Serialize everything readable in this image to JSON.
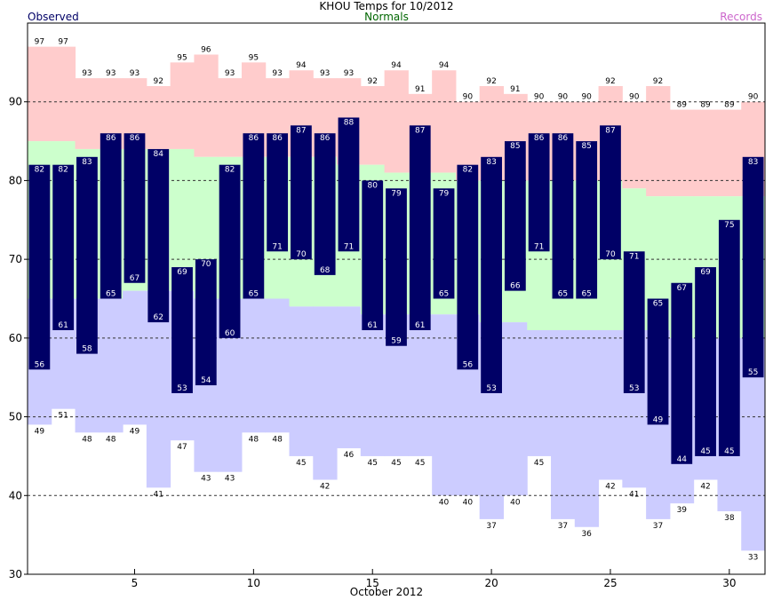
{
  "chart_data": {
    "type": "bar",
    "title": "KHOU Temps for 10/2012",
    "xlabel": "October 2012",
    "ylabel": "",
    "legend": {
      "observed": "Observed",
      "normals": "Normals",
      "records": "Records",
      "placement": "top"
    },
    "grid": true,
    "xlim": [
      1,
      31
    ],
    "ylim": [
      30,
      100
    ],
    "y_ticks": [
      30,
      40,
      50,
      60,
      70,
      80,
      90
    ],
    "x_ticks": [
      5,
      10,
      15,
      20,
      25,
      30
    ],
    "days": [
      1,
      2,
      3,
      4,
      5,
      6,
      7,
      8,
      9,
      10,
      11,
      12,
      13,
      14,
      15,
      16,
      17,
      18,
      19,
      20,
      21,
      22,
      23,
      24,
      25,
      26,
      27,
      28,
      29,
      30,
      31
    ],
    "series": [
      {
        "name": "Observed",
        "key": "obs_high",
        "values": [
          82,
          82,
          83,
          86,
          86,
          84,
          69,
          70,
          82,
          86,
          86,
          87,
          86,
          88,
          80,
          79,
          87,
          79,
          82,
          83,
          85,
          86,
          86,
          85,
          87,
          71,
          65,
          67,
          69,
          75,
          83
        ]
      },
      {
        "name": "Observed",
        "key": "obs_low",
        "values": [
          56,
          61,
          58,
          65,
          67,
          62,
          53,
          54,
          60,
          65,
          71,
          70,
          68,
          71,
          61,
          59,
          61,
          65,
          56,
          53,
          66,
          71,
          65,
          65,
          70,
          53,
          49,
          44,
          45,
          45,
          55
        ]
      },
      {
        "name": "Normals",
        "key": "norm_high",
        "values": [
          85,
          85,
          84,
          84,
          84,
          84,
          84,
          83,
          83,
          83,
          83,
          83,
          83,
          82,
          82,
          81,
          81,
          81,
          80,
          80,
          80,
          80,
          80,
          80,
          80,
          79,
          78,
          78,
          78,
          78,
          78
        ]
      },
      {
        "name": "Normals",
        "key": "norm_low",
        "values": [
          65,
          65,
          65,
          65,
          66,
          66,
          66,
          65,
          65,
          65,
          65,
          64,
          64,
          64,
          63,
          63,
          63,
          63,
          63,
          62,
          62,
          61,
          61,
          61,
          61,
          61,
          61,
          60,
          60,
          60,
          60
        ]
      },
      {
        "name": "Records",
        "key": "rec_high",
        "values": [
          97,
          97,
          93,
          93,
          93,
          92,
          95,
          96,
          93,
          95,
          93,
          94,
          93,
          93,
          92,
          94,
          91,
          94,
          90,
          92,
          91,
          90,
          90,
          90,
          92,
          90,
          92,
          89,
          89,
          89,
          90
        ]
      },
      {
        "name": "Records",
        "key": "rec_low",
        "values": [
          49,
          51,
          48,
          48,
          49,
          41,
          47,
          43,
          43,
          48,
          48,
          45,
          42,
          46,
          45,
          45,
          45,
          40,
          40,
          37,
          40,
          45,
          37,
          36,
          42,
          41,
          37,
          39,
          42,
          38,
          33
        ]
      }
    ],
    "colors": {
      "observed": "#000066",
      "normals_band": "#ccffcc",
      "record_high_band": "#ffcccc",
      "record_low_band": "#ccccff",
      "normals_text": "#006600",
      "records_text": "#cc66cc",
      "bar_label": "#ffffff",
      "record_label": "#000000",
      "grid": "#333333"
    }
  }
}
